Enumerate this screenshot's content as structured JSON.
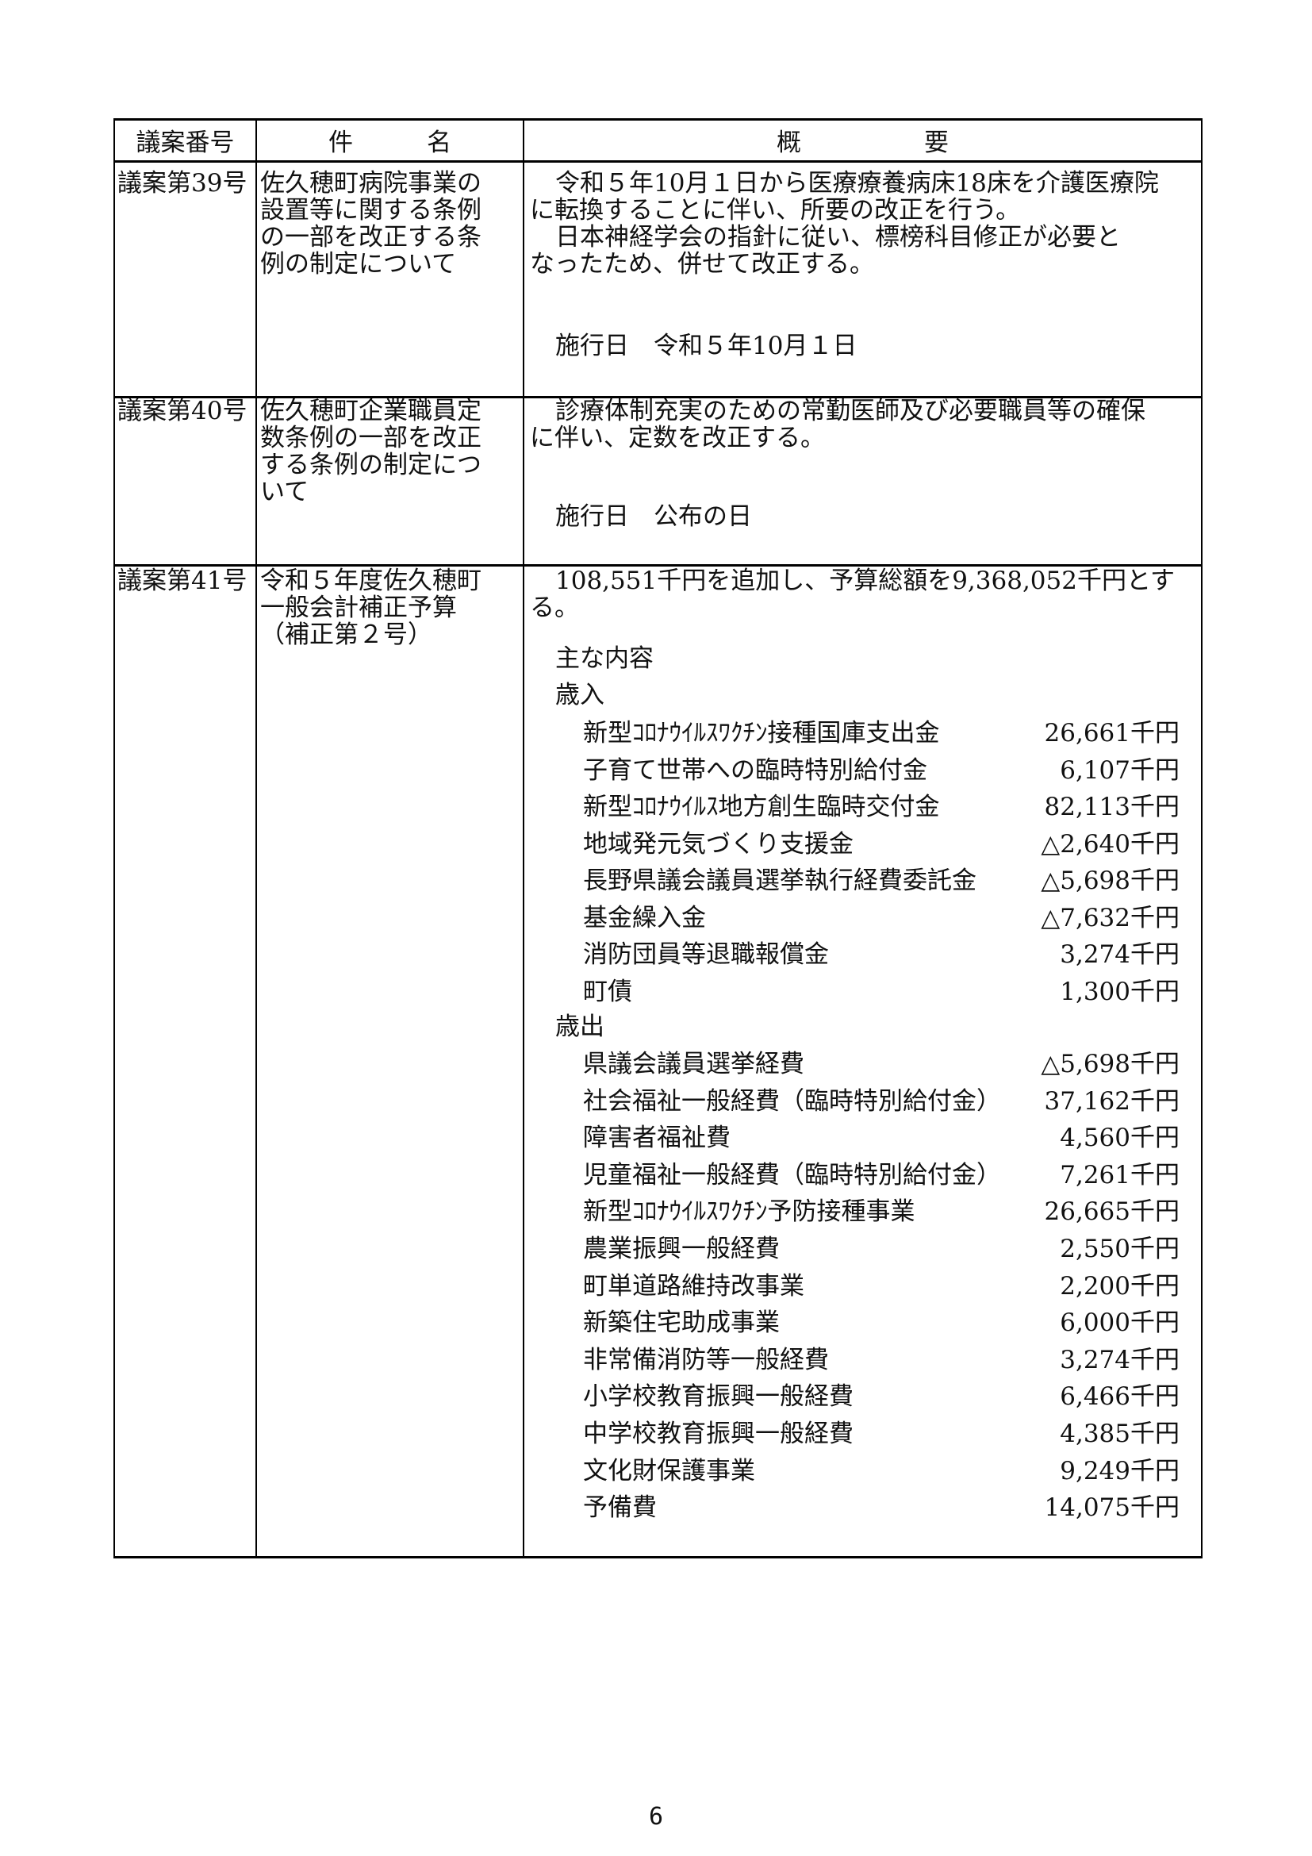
{
  "header": {
    "col1": "議案番号",
    "col2": "件　　　名",
    "col3": "概　　　　　要"
  },
  "bills": [
    {
      "number": "議案第39号",
      "title_lines": [
        "佐久穂町病院事業の",
        "設置等に関する条例",
        "の一部を改正する条",
        "例の制定について"
      ],
      "summary_lines": [
        "令和５年10月１日から医療療養病床18床を介護医療院",
        "に転換することに伴い、所要の改正を行う。",
        "日本神経学会の指針に従い、標榜科目修正が必要と",
        "なったため、併せて改正する。"
      ],
      "effective": "施行日　令和５年10月１日"
    },
    {
      "number": "議案第40号",
      "title_lines": [
        "佐久穂町企業職員定",
        "数条例の一部を改正",
        "する条例の制定につ",
        "いて"
      ],
      "summary_lines": [
        "診療体制充実のための常勤医師及び必要職員等の確保",
        "に伴い、定数を改正する。"
      ],
      "effective": "施行日　公布の日"
    },
    {
      "number": "議案第41号",
      "title_lines": [
        "令和５年度佐久穂町",
        "一般会計補正予算",
        "（補正第２号）"
      ],
      "summary_lines": [
        "108,551千円を追加し、予算総額を9,368,052千円とす",
        "る。"
      ],
      "main_contents": "主な内容",
      "revenue_label": "歳入",
      "revenue": [
        {
          "label": "新型ｺﾛﾅｳｲﾙｽﾜｸﾁﾝ接種国庫支出金",
          "amount": "26,661千円"
        },
        {
          "label": "子育て世帯への臨時特別給付金",
          "amount": "6,107千円"
        },
        {
          "label": "新型ｺﾛﾅｳｲﾙｽ地方創生臨時交付金",
          "amount": "82,113千円"
        },
        {
          "label": "地域発元気づくり支援金",
          "amount": "△2,640千円"
        },
        {
          "label": "長野県議会議員選挙執行経費委託金",
          "amount": "△5,698千円"
        },
        {
          "label": "基金繰入金",
          "amount": "△7,632千円"
        },
        {
          "label": "消防団員等退職報償金",
          "amount": "3,274千円"
        },
        {
          "label": "町債",
          "amount": "1,300千円"
        }
      ],
      "expenditure_label": "歳出",
      "expenditure": [
        {
          "label": "県議会議員選挙経費",
          "amount": "△5,698千円"
        },
        {
          "label": "社会福祉一般経費（臨時特別給付金）",
          "amount": "37,162千円"
        },
        {
          "label": "障害者福祉費",
          "amount": "4,560千円"
        },
        {
          "label": "児童福祉一般経費（臨時特別給付金）",
          "amount": "7,261千円"
        },
        {
          "label": "新型ｺﾛﾅｳｲﾙｽﾜｸﾁﾝ予防接種事業",
          "amount": "26,665千円"
        },
        {
          "label": "農業振興一般経費",
          "amount": "2,550千円"
        },
        {
          "label": "町単道路維持改事業",
          "amount": "2,200千円"
        },
        {
          "label": "新築住宅助成事業",
          "amount": "6,000千円"
        },
        {
          "label": "非常備消防等一般経費",
          "amount": "3,274千円"
        },
        {
          "label": "小学校教育振興一般経費",
          "amount": "6,466千円"
        },
        {
          "label": "中学校教育振興一般経費",
          "amount": "4,385千円"
        },
        {
          "label": "文化財保護事業",
          "amount": "9,249千円"
        },
        {
          "label": "予備費",
          "amount": "14,075千円"
        }
      ]
    }
  ],
  "page_number": "6"
}
